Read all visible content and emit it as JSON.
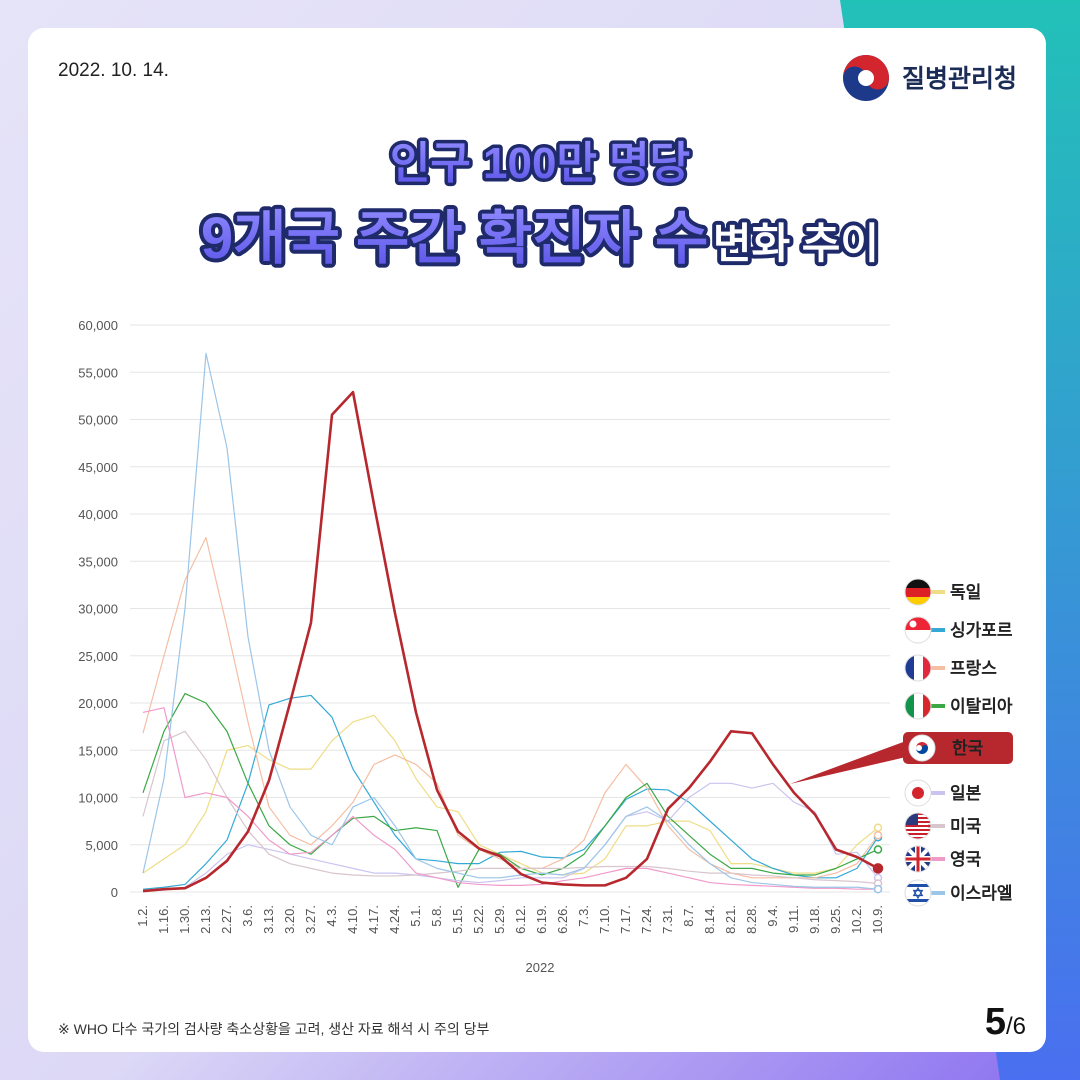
{
  "date": "2022. 10. 14.",
  "agency": "질병관리청",
  "title": {
    "line1": "인구 100만 명당",
    "line2_main": "9개국 주간 확진자 수",
    "line2_rest": "변화 추이"
  },
  "footnote": "※ WHO 다수 국가의 검사량 축소상황을 고려, 생산 자료 해석 시 주의 당부",
  "pagination": {
    "current": "5",
    "total": "/6"
  },
  "chart_data": {
    "type": "line",
    "xlabel": "2022",
    "categories": [
      "1.2.",
      "1.16.",
      "1.30.",
      "2.13.",
      "2.27.",
      "3.6.",
      "3.13.",
      "3.20.",
      "3.27.",
      "4.3.",
      "4.10.",
      "4.17.",
      "4.24.",
      "5.1.",
      "5.8.",
      "5.15.",
      "5.22.",
      "5.29.",
      "6.12.",
      "6.19.",
      "6.26.",
      "7.3.",
      "7.10.",
      "7.17.",
      "7.24.",
      "7.31.",
      "8.7.",
      "8.14.",
      "8.21.",
      "8.28.",
      "9.4.",
      "9.11.",
      "9.18.",
      "9.25.",
      "10.2.",
      "10.9."
    ],
    "ylim": [
      0,
      60000
    ],
    "yticks": [
      0,
      {
        "value": 5000,
        "label": "5,000"
      },
      {
        "value": 10000,
        "label": "10,000"
      },
      {
        "value": 15000,
        "label": "15,000"
      },
      {
        "value": 20000,
        "label": "20,000"
      },
      {
        "value": 25000,
        "label": "25,000"
      },
      {
        "value": 30000,
        "label": "30,000"
      },
      {
        "value": 35000,
        "label": "35,000"
      },
      {
        "value": 40000,
        "label": "40,000"
      },
      {
        "value": 45000,
        "label": "45,000"
      },
      {
        "value": 50000,
        "label": "50,000"
      },
      {
        "value": 55000,
        "label": "55,000"
      },
      {
        "value": 60000,
        "label": "60,000"
      }
    ],
    "grid": true,
    "legend": "right",
    "highlight": "한국",
    "series": [
      {
        "name": "독일",
        "color": "#eedd86",
        "values": [
          2000,
          3500,
          5000,
          8500,
          15000,
          15500,
          14000,
          13000,
          13000,
          16000,
          18000,
          18700,
          16000,
          12000,
          9000,
          8500,
          5000,
          4000,
          3000,
          2000,
          1800,
          2000,
          3500,
          7000,
          7000,
          7500,
          7500,
          6500,
          3000,
          3000,
          2500,
          2000,
          2000,
          2500,
          5000,
          6800
        ]
      },
      {
        "name": "싱가포르",
        "color": "#34a9d6",
        "values": [
          300,
          500,
          800,
          3000,
          5500,
          11500,
          19800,
          20500,
          20800,
          18500,
          13000,
          9500,
          6000,
          3500,
          3300,
          3000,
          3000,
          4200,
          4300,
          3700,
          3600,
          4500,
          7000,
          9800,
          10900,
          10800,
          9500,
          7500,
          5500,
          3500,
          2500,
          1800,
          1500,
          1500,
          2500,
          5800
        ]
      },
      {
        "name": "프랑스",
        "color": "#f5bea3",
        "values": [
          16800,
          25000,
          33000,
          37500,
          28000,
          18000,
          9000,
          6000,
          5000,
          7000,
          9500,
          13500,
          14500,
          13500,
          11500,
          6000,
          4500,
          3500,
          2500,
          2500,
          3500,
          5500,
          10500,
          13500,
          11000,
          7000,
          4500,
          3000,
          2000,
          1500,
          1500,
          1500,
          1500,
          2000,
          3000,
          6000
        ]
      },
      {
        "name": "이탈리아",
        "color": "#3aa845",
        "values": [
          10500,
          17000,
          21000,
          20000,
          17000,
          11500,
          7000,
          5000,
          4000,
          6000,
          7800,
          8000,
          6500,
          6800,
          6500,
          500,
          4500,
          4000,
          2500,
          1800,
          2500,
          4000,
          7000,
          10000,
          11500,
          8000,
          6000,
          4000,
          2500,
          2500,
          2000,
          1800,
          1800,
          2500,
          3500,
          4500
        ]
      },
      {
        "name": "한국",
        "color": "#b7282e",
        "values": [
          100,
          300,
          400,
          1500,
          3300,
          6400,
          11800,
          20000,
          28500,
          50500,
          52900,
          41000,
          29500,
          19000,
          10800,
          6400,
          4600,
          3800,
          1900,
          1000,
          800,
          700,
          700,
          1500,
          3500,
          8800,
          11000,
          13800,
          17000,
          16800,
          13500,
          10500,
          8200,
          4500,
          3700,
          2500
        ]
      },
      {
        "name": "일본",
        "color": "#c9c4f0",
        "values": [
          100,
          200,
          500,
          2000,
          4000,
          5000,
          4500,
          4000,
          3500,
          3000,
          2500,
          2000,
          2000,
          1800,
          1500,
          1200,
          1000,
          1200,
          1500,
          1500,
          1500,
          2500,
          5000,
          8000,
          8500,
          7500,
          10000,
          11500,
          11500,
          11000,
          11500,
          9500,
          8500,
          4000,
          4200,
          1500
        ]
      },
      {
        "name": "미국",
        "color": "#d8c5ce",
        "values": [
          8000,
          16000,
          17000,
          14000,
          10000,
          6500,
          4000,
          3000,
          2500,
          2000,
          1800,
          1700,
          1700,
          1800,
          2000,
          2200,
          2500,
          2500,
          2500,
          2500,
          2500,
          2600,
          2700,
          2700,
          2700,
          2500,
          2200,
          2000,
          2000,
          1800,
          1700,
          1500,
          1300,
          1200,
          1100,
          900
        ]
      },
      {
        "name": "영국",
        "color": "#f09aca",
        "values": [
          19000,
          19500,
          10000,
          10500,
          10000,
          8000,
          5500,
          4000,
          4200,
          6000,
          8000,
          6000,
          4500,
          2000,
          1500,
          1000,
          800,
          700,
          700,
          800,
          1200,
          1500,
          2000,
          2500,
          2500,
          2000,
          1500,
          1000,
          800,
          700,
          600,
          500,
          400,
          400,
          300,
          300
        ]
      },
      {
        "name": "이스라엘",
        "color": "#9cc5e8",
        "values": [
          2000,
          12000,
          30000,
          57000,
          47000,
          27000,
          15000,
          9000,
          6000,
          5000,
          9000,
          10000,
          7000,
          3500,
          2500,
          2000,
          1500,
          1500,
          1800,
          2000,
          1800,
          2500,
          5000,
          8000,
          9000,
          7500,
          5000,
          3000,
          1500,
          1000,
          800,
          600,
          500,
          500,
          500,
          300
        ]
      }
    ]
  }
}
